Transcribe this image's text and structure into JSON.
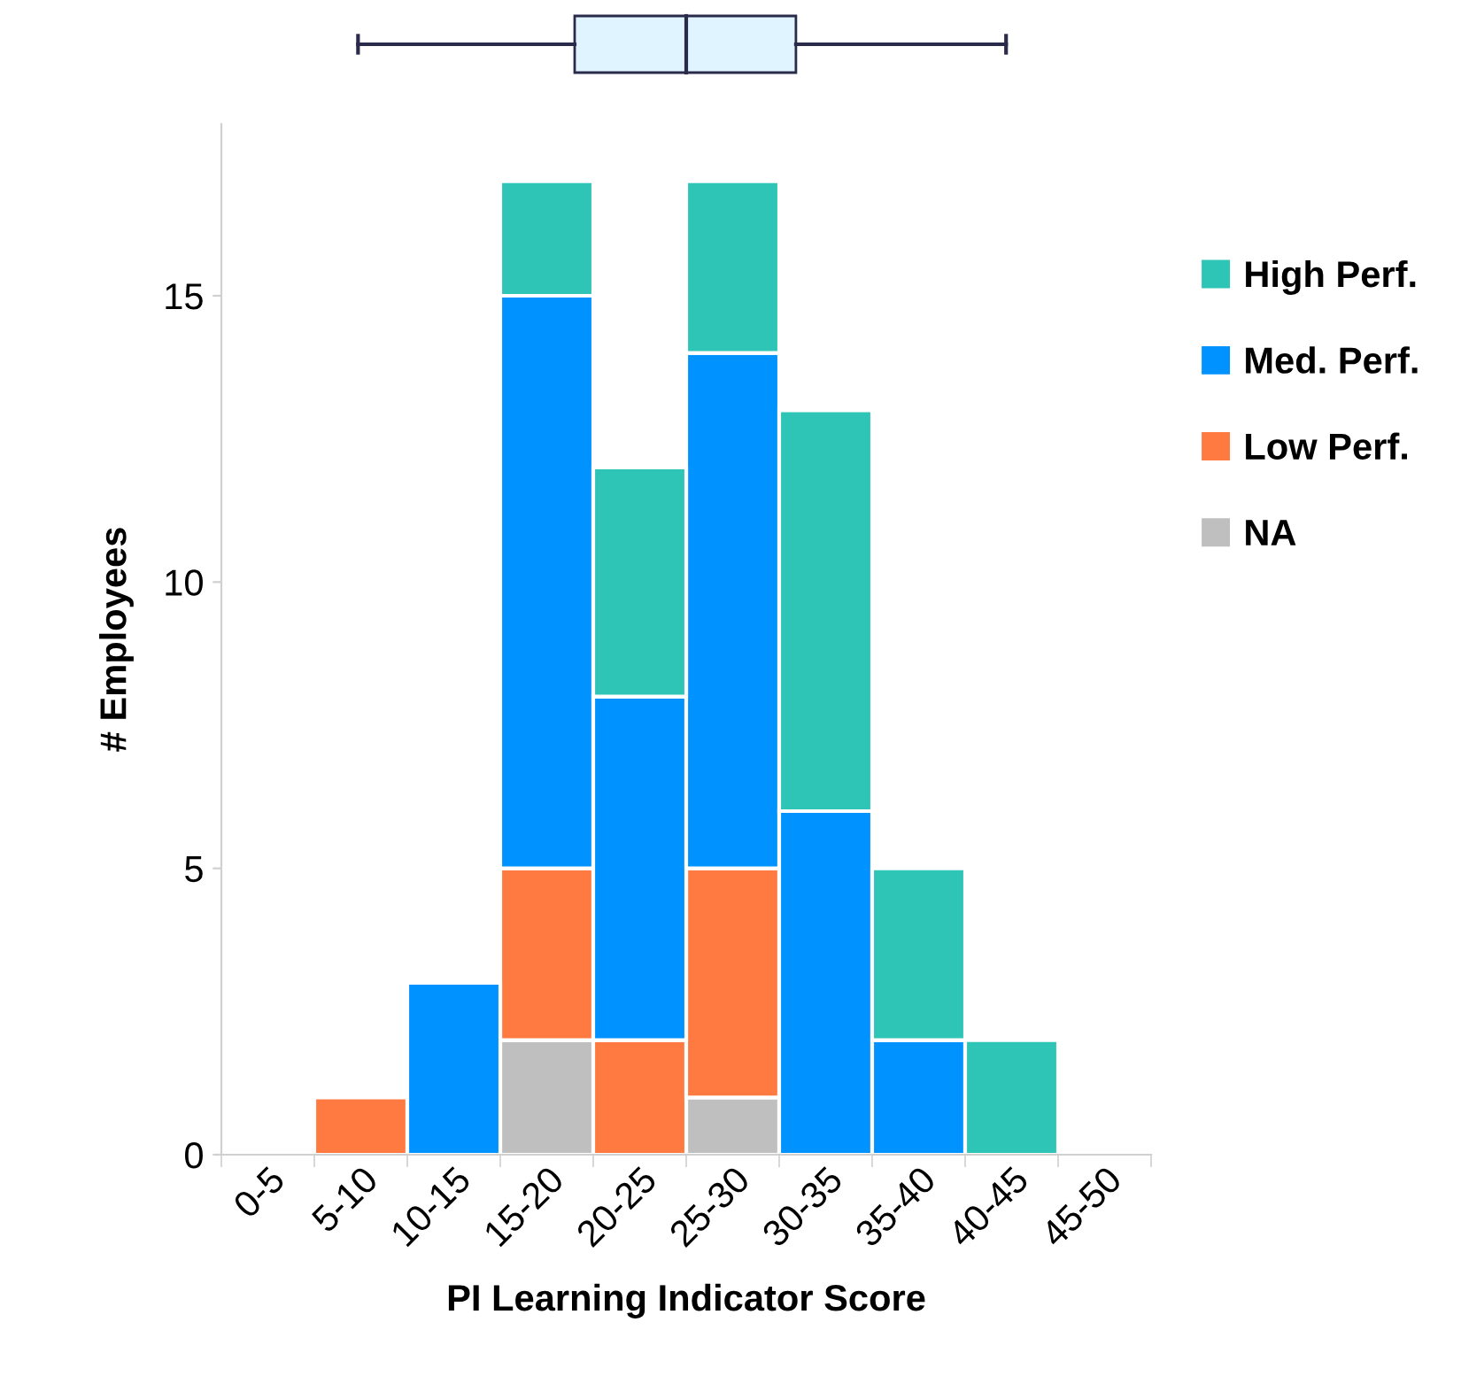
{
  "chart_data": {
    "type": "bar",
    "stacked": true,
    "xlabel": "PI Learning Indicator Score",
    "ylabel": "# Employees",
    "categories": [
      "0-5",
      "5-10",
      "10-15",
      "15-20",
      "20-25",
      "25-30",
      "30-35",
      "35-40",
      "40-45",
      "45-50"
    ],
    "ylim": [
      0,
      18
    ],
    "yticks": [
      0,
      5,
      10,
      15
    ],
    "grid": false,
    "legend": "right",
    "series": [
      {
        "name": "NA",
        "color": "#bfbfbf",
        "values": [
          0,
          0,
          0,
          2,
          0,
          1,
          0,
          0,
          0,
          0
        ]
      },
      {
        "name": "Low Perf.",
        "color": "#ff7a40",
        "values": [
          0,
          1,
          0,
          3,
          2,
          4,
          0,
          0,
          0,
          0
        ]
      },
      {
        "name": "Med. Perf.",
        "color": "#0092ff",
        "values": [
          0,
          0,
          3,
          10,
          6,
          9,
          6,
          2,
          0,
          0
        ]
      },
      {
        "name": "High Perf.",
        "color": "#2ec4b6",
        "values": [
          0,
          0,
          0,
          2,
          4,
          3,
          7,
          3,
          2,
          0
        ]
      }
    ]
  }
}
